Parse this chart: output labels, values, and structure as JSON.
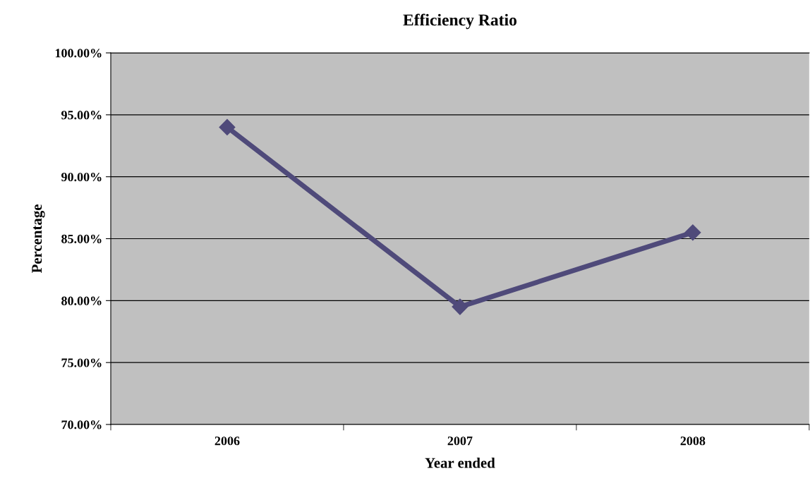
{
  "chart_data": {
    "type": "line",
    "title": "Efficiency Ratio",
    "xlabel": "Year ended",
    "ylabel": "Percentage",
    "categories": [
      "2006",
      "2007",
      "2008"
    ],
    "series": [
      {
        "color": "#4f4a7a",
        "values": [
          94.0,
          79.5,
          85.5
        ]
      }
    ],
    "ylim": [
      70,
      100
    ],
    "yticks": [
      {
        "value": 70,
        "label": "70.00%"
      },
      {
        "value": 75,
        "label": "75.00%"
      },
      {
        "value": 80,
        "label": "80.00%"
      },
      {
        "value": 85,
        "label": "85.00%"
      },
      {
        "value": 90,
        "label": "90.00%"
      },
      {
        "value": 95,
        "label": "95.00%"
      },
      {
        "value": 100,
        "label": "100.00%"
      }
    ],
    "grid": "y",
    "marker": "diamond",
    "line_style": "solid",
    "legend": false
  }
}
